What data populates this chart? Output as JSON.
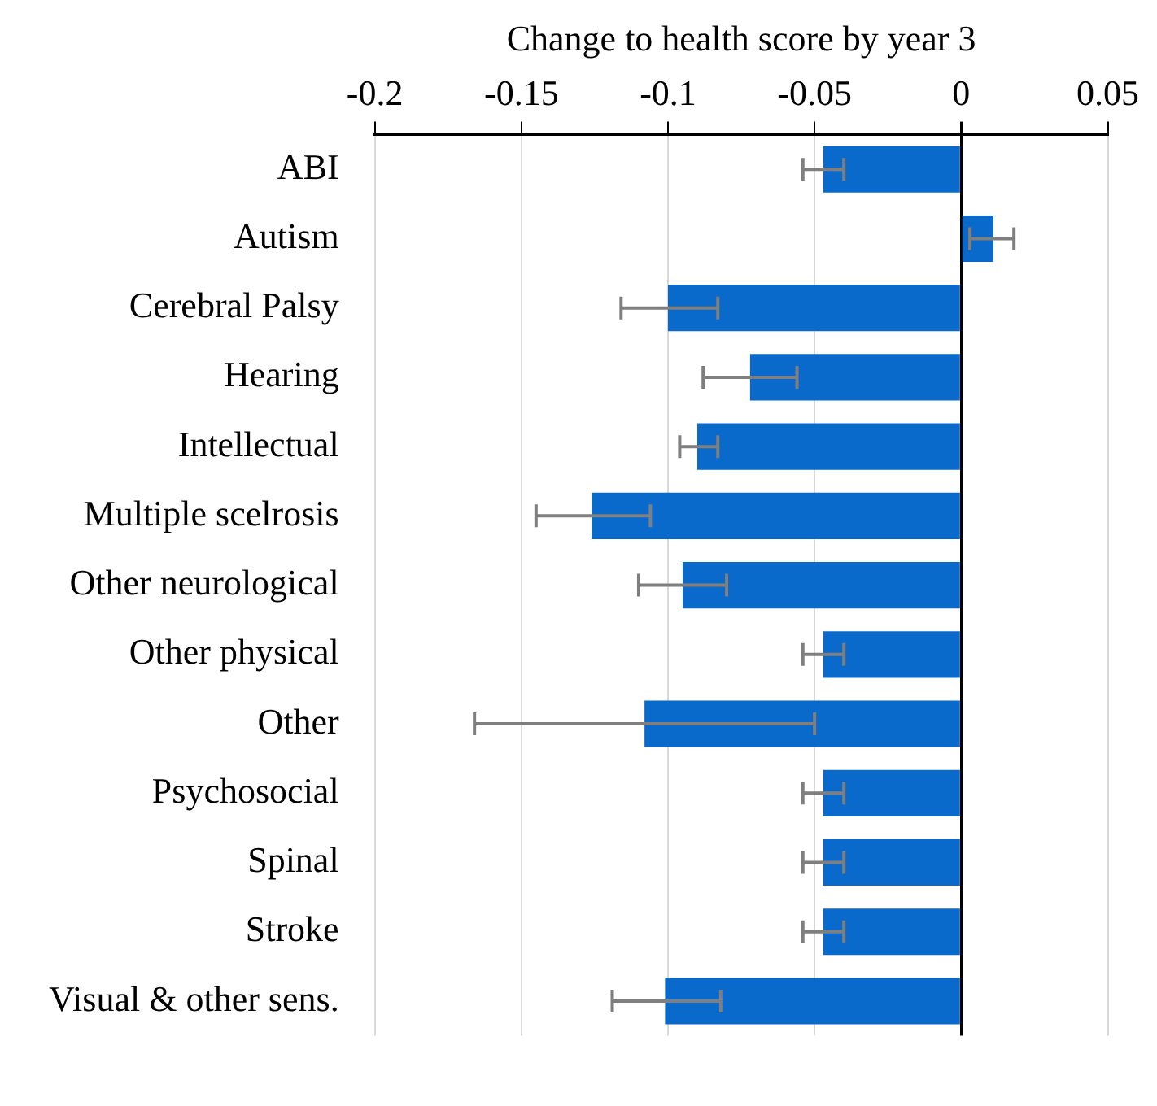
{
  "chart_data": {
    "type": "bar",
    "orientation": "horizontal",
    "xlabel": "Change to health score by year 3",
    "categories": [
      "ABI",
      "Autism",
      "Cerebral Palsy",
      "Hearing",
      "Intellectual",
      "Multiple scelrosis",
      "Other neurological",
      "Other physical",
      "Other",
      "Psychosocial",
      "Spinal",
      "Stroke",
      "Visual & other sens."
    ],
    "values": [
      -0.047,
      0.011,
      -0.1,
      -0.072,
      -0.09,
      -0.126,
      -0.095,
      -0.047,
      -0.108,
      -0.047,
      -0.047,
      -0.047,
      -0.101
    ],
    "errors": [
      [
        -0.054,
        -0.04
      ],
      [
        0.003,
        0.018
      ],
      [
        -0.116,
        -0.083
      ],
      [
        -0.088,
        -0.056
      ],
      [
        -0.096,
        -0.083
      ],
      [
        -0.145,
        -0.106
      ],
      [
        -0.11,
        -0.08
      ],
      [
        -0.054,
        -0.04
      ],
      [
        -0.166,
        -0.05
      ],
      [
        -0.054,
        -0.04
      ],
      [
        -0.054,
        -0.04
      ],
      [
        -0.054,
        -0.04
      ],
      [
        -0.119,
        -0.082
      ]
    ],
    "color": "#0a6acb",
    "xlim": [
      -0.2,
      0.05
    ],
    "xticks": [
      -0.2,
      -0.15,
      -0.1,
      -0.05,
      0,
      0.05
    ],
    "grid": "x",
    "legend": false
  }
}
